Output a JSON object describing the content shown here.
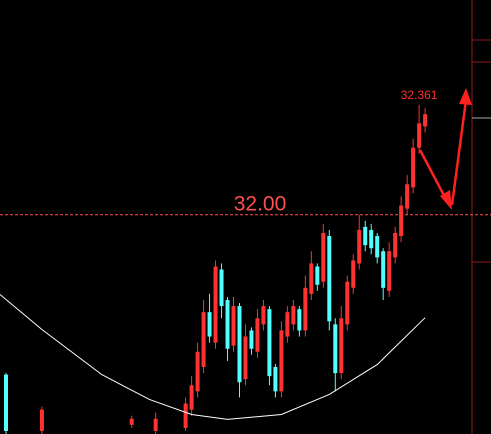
{
  "chart_data": {
    "type": "candlestick",
    "x": [
      0,
      6,
      21,
      25,
      30,
      31,
      32,
      33,
      34,
      35,
      36,
      37,
      38,
      39,
      40,
      41,
      42,
      43,
      44,
      45,
      46,
      47,
      48,
      49,
      50,
      51,
      52,
      53,
      54,
      55,
      56,
      57,
      58,
      59,
      60,
      61,
      62,
      63,
      64,
      65,
      66,
      67,
      68,
      69,
      70
    ],
    "open": [
      31.475,
      31.29,
      31.31,
      31.29,
      31.3,
      31.36,
      31.42,
      31.5,
      31.68,
      31.58,
      31.82,
      31.72,
      31.57,
      31.7,
      31.46,
      31.62,
      31.55,
      31.64,
      31.69,
      31.5,
      31.42,
      31.6,
      31.64,
      31.69,
      31.62,
      31.74,
      31.83,
      31.78,
      31.93,
      31.64,
      31.48,
      31.64,
      31.76,
      31.84,
      31.96,
      31.95,
      31.93,
      31.88,
      31.75,
      31.86,
      31.93,
      32.02,
      32.09,
      32.22,
      32.29
    ],
    "close": [
      31.29,
      31.36,
      31.33,
      31.33,
      31.38,
      31.44,
      31.55,
      31.68,
      31.6,
      31.83,
      31.7,
      31.56,
      31.7,
      31.45,
      31.6,
      31.56,
      31.66,
      31.7,
      31.47,
      31.42,
      31.62,
      31.68,
      31.7,
      31.62,
      31.76,
      31.84,
      31.77,
      31.94,
      31.65,
      31.48,
      31.66,
      31.78,
      31.85,
      31.95,
      31.9,
      31.89,
      31.86,
      31.76,
      31.88,
      31.94,
      32.03,
      32.1,
      32.22,
      32.3,
      32.33
    ],
    "high": [
      31.48,
      31.37,
      31.34,
      31.35,
      31.4,
      31.47,
      31.58,
      31.72,
      31.74,
      31.85,
      31.84,
      31.73,
      31.73,
      31.71,
      31.64,
      31.63,
      31.69,
      31.72,
      31.7,
      31.51,
      31.65,
      31.7,
      31.72,
      31.7,
      31.8,
      31.88,
      31.84,
      31.97,
      31.95,
      31.66,
      31.7,
      31.8,
      31.87,
      32.0,
      31.98,
      31.97,
      31.94,
      31.89,
      31.91,
      31.96,
      32.06,
      32.13,
      32.25,
      32.361,
      32.35
    ],
    "low": [
      31.28,
      31.28,
      31.3,
      31.28,
      31.29,
      31.34,
      31.4,
      31.48,
      31.58,
      31.56,
      31.66,
      31.52,
      31.55,
      31.4,
      31.44,
      31.54,
      31.53,
      31.62,
      31.44,
      31.4,
      31.4,
      31.58,
      31.62,
      31.6,
      31.6,
      31.72,
      31.75,
      31.76,
      31.62,
      31.42,
      31.46,
      31.62,
      31.74,
      31.82,
      31.88,
      31.87,
      31.84,
      31.72,
      31.73,
      31.84,
      31.91,
      32.0,
      32.07,
      32.2,
      32.27
    ],
    "up_color": "#ff3232",
    "down_color": "#54ffff",
    "ma": {
      "x": [
        -1,
        6,
        16,
        24,
        31,
        37,
        46,
        54,
        62,
        70
      ],
      "values": [
        31.738,
        31.623,
        31.475,
        31.393,
        31.344,
        31.328,
        31.344,
        31.41,
        31.508,
        31.662
      ],
      "color": "#ffffff"
    },
    "xlim": [
      -1,
      77.5
    ],
    "ylim": [
      31.28,
      32.705
    ],
    "reference_line": {
      "value": 32.0,
      "label": "32.00",
      "color": "#ff5050"
    },
    "high_label": {
      "value": 32.361,
      "label": "32.361"
    }
  }
}
